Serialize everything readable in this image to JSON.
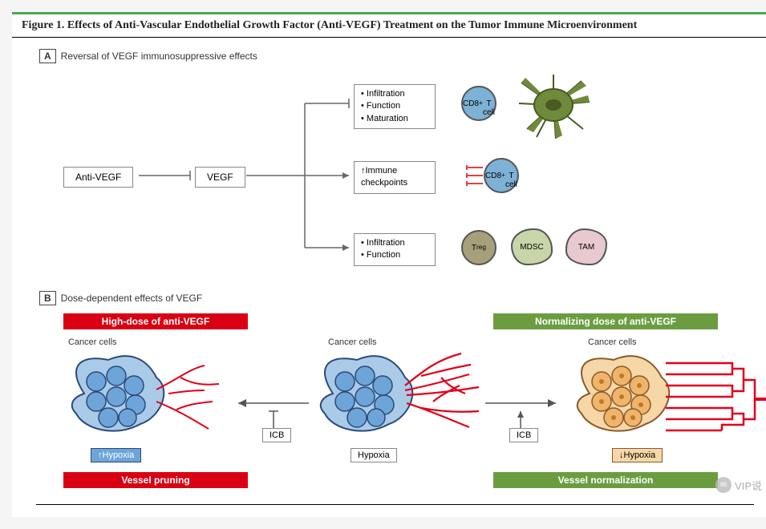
{
  "figure_title": "Figure 1. Effects of Anti-Vascular Endothelial Growth Factor (Anti-VEGF) Treatment on the Tumor Immune Microenvironment",
  "panelA": {
    "tag": "A",
    "caption": "Reversal of VEGF immunosuppressive effects",
    "box_antivegf": "Anti-VEGF",
    "box_vegf": "VEGF",
    "eff1_lines": [
      "• Infiltration",
      "• Function",
      "• Maturation"
    ],
    "eff2_lines": [
      "↑Immune",
      "checkpoints"
    ],
    "eff3_lines": [
      "• Infiltration",
      "• Function"
    ],
    "cells": {
      "cd8a": {
        "label_html": "CD8<sup>+</sup><br>T cell",
        "bg": "#7db1d6"
      },
      "dendritic": {
        "bg": "#6f8a3b"
      },
      "cd8b": {
        "label_html": "CD8<sup>+</sup><br>T cell",
        "bg": "#7db1d6"
      },
      "treg": {
        "label_html": "T<sub>reg</sub>",
        "bg": "#a5a07a"
      },
      "mdsc": {
        "label": "MDSC",
        "bg": "#c7d6a8"
      },
      "tam": {
        "label": "TAM",
        "bg": "#e7c9cf"
      }
    },
    "colors": {
      "line": "#666",
      "inhibitor_cap": "#666",
      "receptor_red": "#e04040"
    }
  },
  "panelB": {
    "tag": "B",
    "caption": "Dose-dependent effects of VEGF",
    "banner_high": "High-dose of anti-VEGF",
    "banner_norm": "Normalizing dose of anti-VEGF",
    "banner_pruning": "Vessel pruning",
    "banner_normalization": "Vessel normalization",
    "cancer_label": "Cancer cells",
    "icb_label": "ICB",
    "hypoxia_up": "↑Hypoxia",
    "hypoxia_mid": "Hypoxia",
    "hypoxia_down": "↓Hypoxia",
    "colors": {
      "red": "#d90014",
      "green": "#6b9d40",
      "cell_blue_fill": "#6ea5d8",
      "cell_blue_stroke": "#2a4a7a",
      "cell_orange_fill": "#f0b46a",
      "cell_orange_stroke": "#8a5a2a",
      "membrane_blue": "#a9cbe8",
      "membrane_orange": "#f5d7a8",
      "vessel_red": "#e2001a"
    }
  },
  "watermark": "VIP说"
}
